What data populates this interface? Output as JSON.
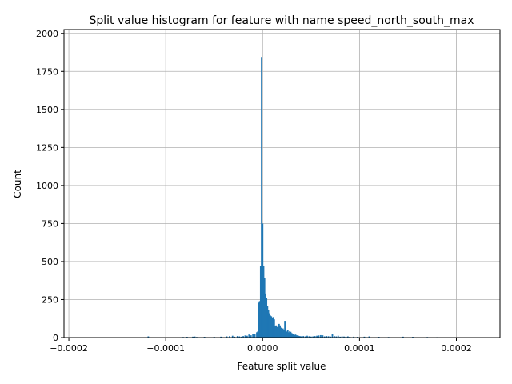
{
  "chart_data": {
    "type": "bar",
    "title": "Split value histogram for feature with name speed_north_south_max",
    "xlabel": "Feature split value",
    "ylabel": "Count",
    "xlim": [
      -0.000205,
      0.000245
    ],
    "ylim": [
      0,
      2025
    ],
    "grid": true,
    "bar_color": "#1f77b4",
    "bar_width": 1.5e-06,
    "xticks": [
      {
        "value": -0.0002,
        "label": "−0.0002"
      },
      {
        "value": -0.0001,
        "label": "−0.0001"
      },
      {
        "value": 0,
        "label": "0.0000"
      },
      {
        "value": 0.0001,
        "label": "0.0001"
      },
      {
        "value": 0.0002,
        "label": "0.0002"
      }
    ],
    "yticks": [
      {
        "value": 0,
        "label": "0"
      },
      {
        "value": 250,
        "label": "250"
      },
      {
        "value": 500,
        "label": "500"
      },
      {
        "value": 750,
        "label": "750"
      },
      {
        "value": 1000,
        "label": "1000"
      },
      {
        "value": 1250,
        "label": "1250"
      },
      {
        "value": 1500,
        "label": "1500"
      },
      {
        "value": 1750,
        "label": "1750"
      },
      {
        "value": 2000,
        "label": "2000"
      }
    ],
    "x": [
      -0.000118,
      -8.2e-05,
      -7.8e-05,
      -7.2e-05,
      -7e-05,
      -6.8e-05,
      -6e-05,
      -5e-05,
      -4.3e-05,
      -3.7e-05,
      -3.4e-05,
      -3.1e-05,
      -2.9e-05,
      -2.6e-05,
      -2.4e-05,
      -2.2e-05,
      -2e-05,
      -1.8e-05,
      -1.6e-05,
      -1.4e-05,
      -1.2e-05,
      -1e-05,
      -8e-06,
      -6e-06,
      -5e-06,
      -4e-06,
      -3e-06,
      -2e-06,
      -1e-06,
      0.0,
      1e-06,
      2e-06,
      3e-06,
      4e-06,
      5e-06,
      6e-06,
      7e-06,
      8e-06,
      9e-06,
      1e-05,
      1.1e-05,
      1.2e-05,
      1.3e-05,
      1.4e-05,
      1.5e-05,
      1.6e-05,
      1.7e-05,
      1.8e-05,
      1.9e-05,
      2e-05,
      2.1e-05,
      2.2e-05,
      2.3e-05,
      2.4e-05,
      2.5e-05,
      2.6e-05,
      2.7e-05,
      2.8e-05,
      2.9e-05,
      3e-05,
      3.1e-05,
      3.2e-05,
      3.3e-05,
      3.4e-05,
      3.5e-05,
      3.6e-05,
      3.7e-05,
      3.8e-05,
      3.9e-05,
      4e-05,
      4.2e-05,
      4.4e-05,
      4.6e-05,
      4.8e-05,
      5e-05,
      5.2e-05,
      5.4e-05,
      5.6e-05,
      5.8e-05,
      6e-05,
      6.2e-05,
      6.4e-05,
      6.6e-05,
      6.8e-05,
      7e-05,
      7.2e-05,
      7.4e-05,
      7.6e-05,
      7.8e-05,
      8e-05,
      8.2e-05,
      8.4e-05,
      8.6e-05,
      8.8e-05,
      9e-05,
      9.4e-05,
      9.8e-05,
      0.000105,
      0.00011,
      0.00012,
      0.00013,
      0.000145,
      0.000155,
      0.00017,
      0.00018
    ],
    "values": [
      8,
      4,
      5,
      6,
      7,
      4,
      5,
      5,
      6,
      8,
      10,
      12,
      6,
      10,
      8,
      6,
      10,
      14,
      12,
      20,
      15,
      25,
      22,
      35,
      40,
      230,
      240,
      470,
      1845,
      750,
      470,
      390,
      290,
      260,
      210,
      180,
      160,
      145,
      140,
      130,
      135,
      120,
      75,
      80,
      70,
      60,
      90,
      80,
      65,
      55,
      60,
      50,
      110,
      45,
      40,
      48,
      35,
      42,
      38,
      30,
      22,
      25,
      18,
      20,
      15,
      14,
      12,
      10,
      9,
      8,
      10,
      8,
      12,
      9,
      7,
      8,
      10,
      12,
      14,
      16,
      15,
      8,
      10,
      9,
      7,
      22,
      10,
      8,
      12,
      6,
      8,
      7,
      6,
      8,
      5,
      6,
      5,
      6,
      8,
      5,
      4,
      6,
      5,
      4,
      3
    ]
  }
}
